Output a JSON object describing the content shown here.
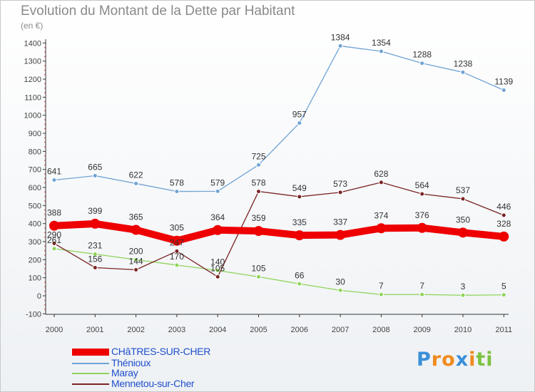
{
  "header": {
    "title": "Evolution du Montant de la Dette par Habitant",
    "unit": "(en €)"
  },
  "chart_data": {
    "type": "line",
    "title": "Evolution du Montant de la Dette par Habitant",
    "ylabel": "(en €)",
    "ylim": [
      -100,
      1400
    ],
    "yticks": [
      -100,
      0,
      100,
      200,
      300,
      400,
      500,
      600,
      700,
      800,
      900,
      1000,
      1100,
      1200,
      1300,
      1400
    ],
    "x": [
      "2000",
      "2001",
      "2002",
      "2003",
      "2004",
      "2005",
      "2006",
      "2007",
      "2008",
      "2009",
      "2010",
      "2011"
    ],
    "grid": false,
    "legend_position": "bottom-left",
    "series": [
      {
        "name": "Thénioux",
        "color": "#6fa3d4",
        "values": [
          641,
          665,
          622,
          578,
          579,
          725,
          957,
          1384,
          1354,
          1288,
          1238,
          1139
        ]
      },
      {
        "name": "Mennetou-sur-Cher",
        "color": "#7a2424",
        "values": [
          290,
          156,
          144,
          247,
          105,
          578,
          549,
          573,
          628,
          564,
          537,
          446
        ]
      },
      {
        "name": "Maray",
        "color": "#8fd45a",
        "values": [
          261,
          231,
          200,
          170,
          140,
          105,
          66,
          30,
          7,
          7,
          3,
          5
        ]
      },
      {
        "name": "CHâTRES-SUR-CHER",
        "color": "#ee0000",
        "values": [
          388,
          399,
          365,
          305,
          364,
          359,
          335,
          337,
          374,
          376,
          350,
          328
        ]
      }
    ]
  },
  "legend": {
    "items": [
      {
        "name": "CHâTRES-SUR-CHER",
        "color": "#ee0000"
      },
      {
        "name": "Thénioux",
        "color": "#6fa3d4"
      },
      {
        "name": "Maray",
        "color": "#8fd45a"
      },
      {
        "name": "Mennetou-sur-Cher",
        "color": "#7a2424"
      }
    ]
  },
  "brand": {
    "text": "Proxiti",
    "letters": [
      {
        "char": "P",
        "color": "#3a8fd8"
      },
      {
        "char": "r",
        "color": "#f08a1c"
      },
      {
        "char": "o",
        "color": "#f08a1c"
      },
      {
        "char": "x",
        "color": "#3a8fd8"
      },
      {
        "char": "i",
        "color": "#f08a1c"
      },
      {
        "char": "t",
        "color": "#7cc242"
      },
      {
        "char": "i",
        "color": "#7cc242"
      }
    ]
  }
}
